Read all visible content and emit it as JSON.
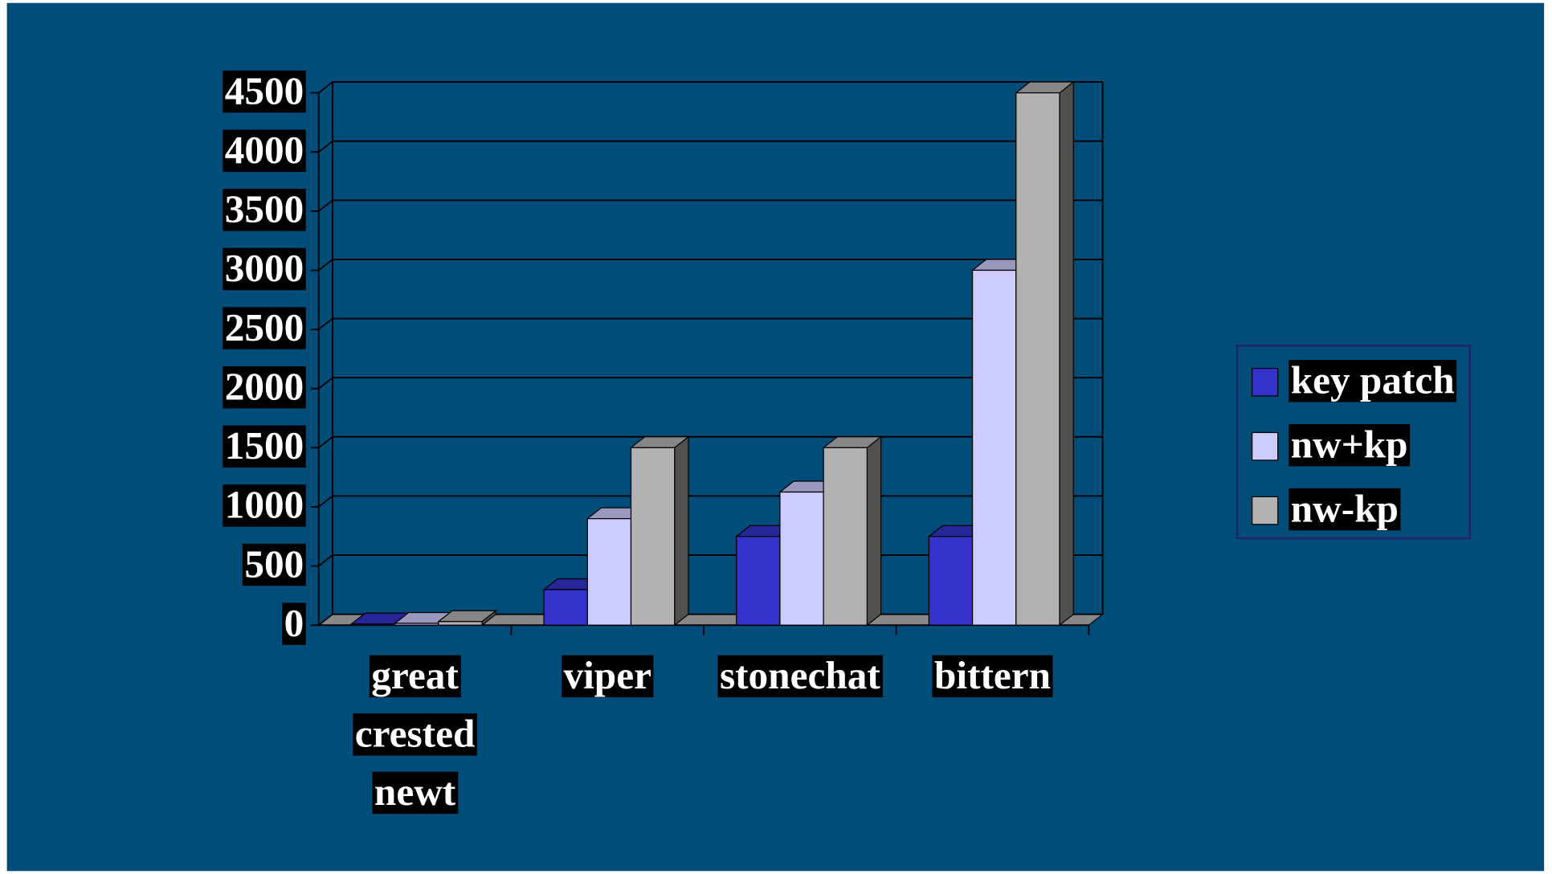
{
  "chart_data": {
    "type": "bar3d",
    "categories": [
      "great crested newt",
      "viper",
      "stonechat",
      "bittern"
    ],
    "series": [
      {
        "name": "key patch",
        "color": "#3333cc",
        "values": [
          10,
          300,
          750,
          750
        ]
      },
      {
        "name": "nw+kp",
        "color": "#ccccff",
        "values": [
          15,
          900,
          1125,
          3000
        ]
      },
      {
        "name": "nw-kp",
        "color": "#b2b2b2",
        "values": [
          30,
          1500,
          1500,
          4500
        ]
      }
    ],
    "ylim": [
      0,
      4500
    ],
    "yticks": [
      0,
      500,
      1000,
      1500,
      2000,
      2500,
      3000,
      3500,
      4000,
      4500
    ],
    "grid": true,
    "legend": "right"
  }
}
